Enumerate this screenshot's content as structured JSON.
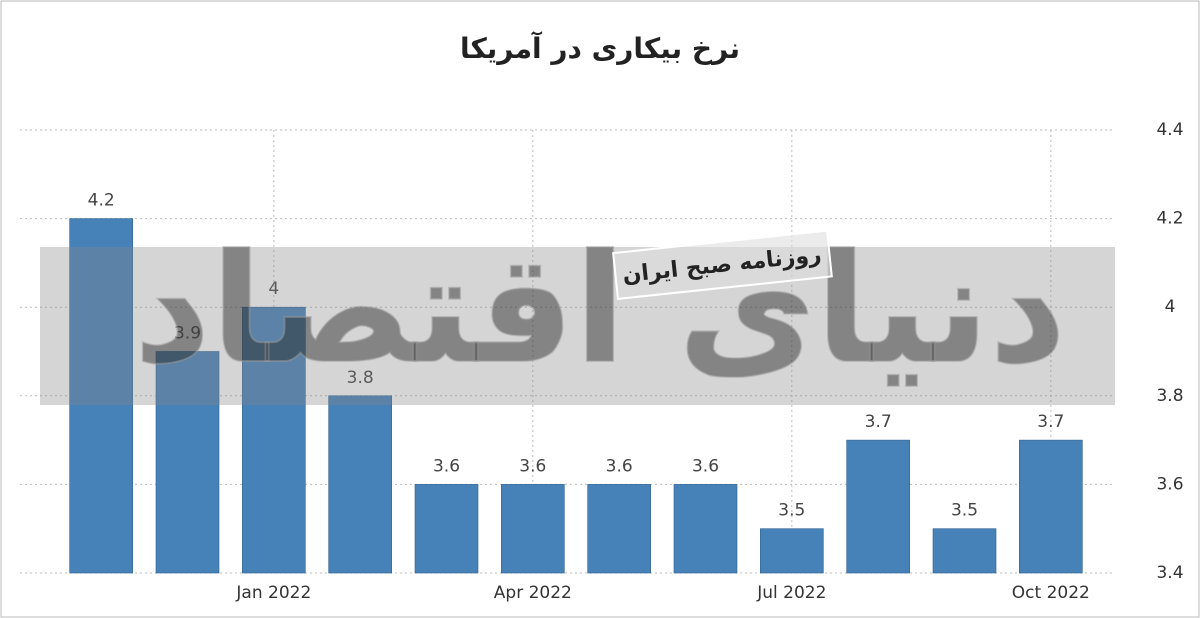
{
  "chart_data": {
    "type": "bar",
    "title": "نرخ بیکاری در آمریکا",
    "watermark": "دنیای اقتصاد",
    "watermark_badge": "روزنامه صبح ایران",
    "categories": [
      null,
      null,
      "Jan 2022",
      null,
      null,
      "Apr 2022",
      null,
      null,
      "Jul 2022",
      null,
      null,
      "Oct 2022"
    ],
    "values": [
      4.2,
      3.9,
      4,
      3.8,
      3.6,
      3.6,
      3.6,
      3.6,
      3.5,
      3.7,
      3.5,
      3.7
    ],
    "color": "#4682b8",
    "ylim": [
      3.4,
      4.4
    ],
    "yticks": [
      3.4,
      3.6,
      3.8,
      4,
      4.2,
      4.4
    ],
    "grid": true,
    "y_axis_side": "right"
  }
}
